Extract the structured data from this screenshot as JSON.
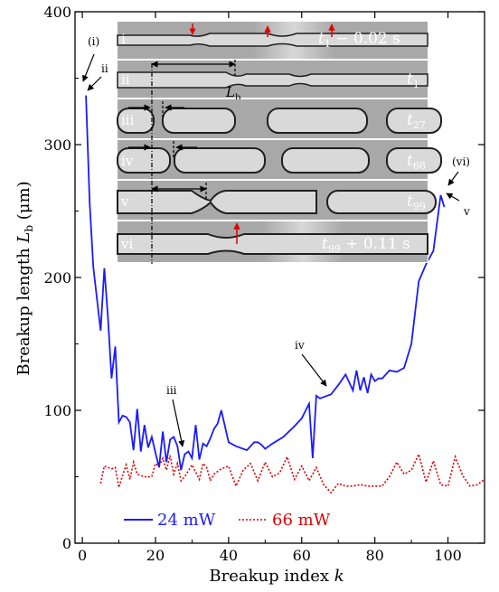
{
  "chart_data": {
    "type": "line",
    "xlabel_main": "Breakup index ",
    "xlabel_var": "k",
    "ylabel_main": "Breakup length ",
    "ylabel_var": "L",
    "ylabel_sub": "b",
    "ylabel_unit": " (μm)",
    "xlim": [
      -2,
      110
    ],
    "ylim": [
      0,
      400
    ],
    "xticks": [
      0,
      20,
      40,
      60,
      80,
      100
    ],
    "yticks": [
      0,
      100,
      200,
      300,
      400
    ],
    "xticklabels": [
      "0",
      "20",
      "40",
      "60",
      "80",
      "100"
    ],
    "yticklabels": [
      "0",
      "100",
      "200",
      "300",
      "400"
    ],
    "legend_position": "bottom-left",
    "series": [
      {
        "name": "24 mW",
        "color": "#1a1aff",
        "style": "solid",
        "x": [
          1,
          2,
          3,
          5,
          6,
          7,
          8,
          9,
          10,
          11,
          12,
          13,
          14,
          15,
          16,
          17,
          18,
          19,
          20,
          21,
          22,
          23,
          24,
          25,
          26,
          27,
          28,
          29,
          30,
          31,
          32,
          33,
          34,
          35,
          36,
          37,
          38,
          40,
          42,
          45,
          47,
          48,
          49,
          50,
          52,
          55,
          58,
          60,
          62,
          63,
          64,
          65,
          66,
          68,
          70,
          72,
          74,
          75,
          76,
          77,
          78,
          79,
          80,
          81,
          82,
          84,
          86,
          88,
          90,
          92,
          94,
          96,
          98,
          99
        ],
        "y": [
          337,
          256,
          208,
          160,
          207,
          170,
          124,
          148,
          91,
          96,
          95,
          91,
          70,
          101,
          69,
          89,
          72,
          80,
          68,
          57,
          84,
          61,
          78,
          80,
          73,
          55,
          67,
          69,
          64,
          89,
          63,
          75,
          73,
          79,
          86,
          90,
          100,
          76,
          73,
          70,
          76,
          76,
          74,
          71,
          75,
          80,
          88,
          94,
          105,
          64,
          111,
          109,
          110,
          112,
          119,
          127,
          115,
          130,
          115,
          125,
          113,
          127,
          122,
          124,
          124,
          130,
          129,
          132,
          150,
          197,
          210,
          220,
          262,
          253
        ]
      },
      {
        "name": "66 mW",
        "color": "#dd0000",
        "style": "dotted",
        "x": [
          5,
          6,
          8,
          9,
          10,
          11,
          12,
          13,
          14,
          15,
          17,
          19,
          20,
          21,
          22,
          23,
          24,
          25,
          26,
          27,
          28,
          30,
          32,
          33,
          34,
          35,
          36,
          38,
          40,
          42,
          44,
          46,
          48,
          50,
          52,
          54,
          56,
          58,
          60,
          62,
          64,
          66,
          68,
          70,
          72,
          74,
          76,
          78,
          80,
          82,
          84,
          86,
          88,
          90,
          92,
          94,
          96,
          98,
          100,
          102,
          104,
          106,
          108,
          110
        ],
        "y": [
          45,
          58,
          56,
          57,
          42,
          51,
          59,
          48,
          61,
          52,
          50,
          50,
          60,
          58,
          64,
          55,
          66,
          52,
          60,
          47,
          50,
          59,
          48,
          60,
          57,
          47,
          52,
          56,
          58,
          43,
          55,
          60,
          47,
          61,
          50,
          53,
          65,
          48,
          58,
          47,
          57,
          44,
          38,
          45,
          43,
          43,
          44,
          43,
          43,
          43,
          50,
          61,
          52,
          55,
          67,
          46,
          62,
          44,
          43,
          65,
          51,
          43,
          44,
          48
        ]
      }
    ]
  },
  "annotations": {
    "point_labels": [
      "(i)",
      "ii",
      "iii",
      "iv",
      "(vi)",
      "v"
    ],
    "inset_rows": [
      {
        "roman": "i",
        "label_base": "t",
        "label_sub": "1",
        "label_suffix": " − 0.02 s"
      },
      {
        "roman": "ii",
        "label_base": "t",
        "label_sub": "1",
        "label_suffix": ""
      },
      {
        "roman": "iii",
        "label_base": "t",
        "label_sub": "27",
        "label_suffix": ""
      },
      {
        "roman": "iv",
        "label_base": "t",
        "label_sub": "68",
        "label_suffix": ""
      },
      {
        "roman": "v",
        "label_base": "t",
        "label_sub": "99",
        "label_suffix": ""
      },
      {
        "roman": "vi",
        "label_base": "t",
        "label_sub": "99",
        "label_suffix": " + 0.11 s"
      }
    ],
    "lb_label": "L",
    "lb_sub": "b"
  },
  "colors": {
    "blue": "#1a1aff",
    "red": "#dd0000",
    "inset_background": "#a8a8a8",
    "droplet_interior": "#d9d9d9",
    "droplet_outline": "#202020"
  }
}
